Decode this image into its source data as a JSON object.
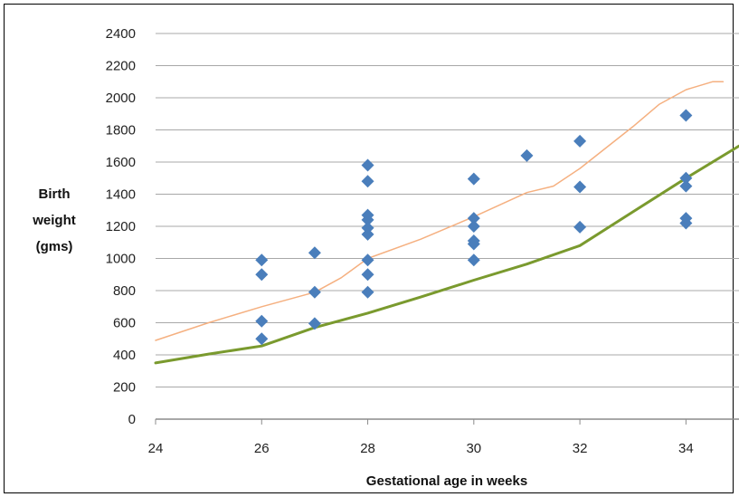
{
  "chart_data": {
    "type": "scatter",
    "title": "",
    "xlabel": "Gestational age in weeks",
    "ylabel_lines": [
      "Birth",
      "weight",
      "(gms)"
    ],
    "xlim": [
      24,
      35
    ],
    "ylim": [
      0,
      2400
    ],
    "xticks": [
      24,
      26,
      28,
      30,
      32,
      34
    ],
    "yticks": [
      0,
      200,
      400,
      600,
      800,
      1000,
      1200,
      1400,
      1600,
      1800,
      2000,
      2200,
      2400
    ],
    "grid": true,
    "legend": "none",
    "series": [
      {
        "kind": "scatter",
        "color": "#4a7ebb",
        "points": [
          [
            26,
            990
          ],
          [
            26,
            900
          ],
          [
            26,
            610
          ],
          [
            26,
            500
          ],
          [
            27,
            1035
          ],
          [
            27,
            790
          ],
          [
            27,
            595
          ],
          [
            28,
            1580
          ],
          [
            28,
            1480
          ],
          [
            28,
            1270
          ],
          [
            28,
            1240
          ],
          [
            28,
            1190
          ],
          [
            28,
            1150
          ],
          [
            28,
            990
          ],
          [
            28,
            900
          ],
          [
            28,
            790
          ],
          [
            30,
            1495
          ],
          [
            30,
            1250
          ],
          [
            30,
            1200
          ],
          [
            30,
            1110
          ],
          [
            30,
            1090
          ],
          [
            30,
            990
          ],
          [
            31,
            1640
          ],
          [
            32,
            1730
          ],
          [
            32,
            1445
          ],
          [
            32,
            1195
          ],
          [
            34,
            1890
          ],
          [
            34,
            1500
          ],
          [
            34,
            1450
          ],
          [
            34,
            1250
          ],
          [
            34,
            1220
          ]
        ]
      },
      {
        "kind": "line",
        "color": "#f5b080",
        "width": 1.5,
        "points": [
          [
            24,
            490
          ],
          [
            25,
            600
          ],
          [
            26,
            700
          ],
          [
            27,
            790
          ],
          [
            27.5,
            880
          ],
          [
            28,
            1000
          ],
          [
            29,
            1120
          ],
          [
            30,
            1260
          ],
          [
            31,
            1410
          ],
          [
            31.5,
            1450
          ],
          [
            32,
            1560
          ],
          [
            33,
            1820
          ],
          [
            33.5,
            1960
          ],
          [
            34,
            2050
          ],
          [
            34.5,
            2100
          ],
          [
            34.7,
            2100
          ]
        ]
      },
      {
        "kind": "line",
        "color": "#7a9a2e",
        "width": 3,
        "points": [
          [
            24,
            350
          ],
          [
            25,
            405
          ],
          [
            26,
            455
          ],
          [
            27,
            570
          ],
          [
            28,
            660
          ],
          [
            29,
            760
          ],
          [
            30,
            865
          ],
          [
            31,
            965
          ],
          [
            32,
            1080
          ],
          [
            33,
            1290
          ],
          [
            34,
            1500
          ],
          [
            35,
            1700
          ]
        ]
      }
    ]
  }
}
